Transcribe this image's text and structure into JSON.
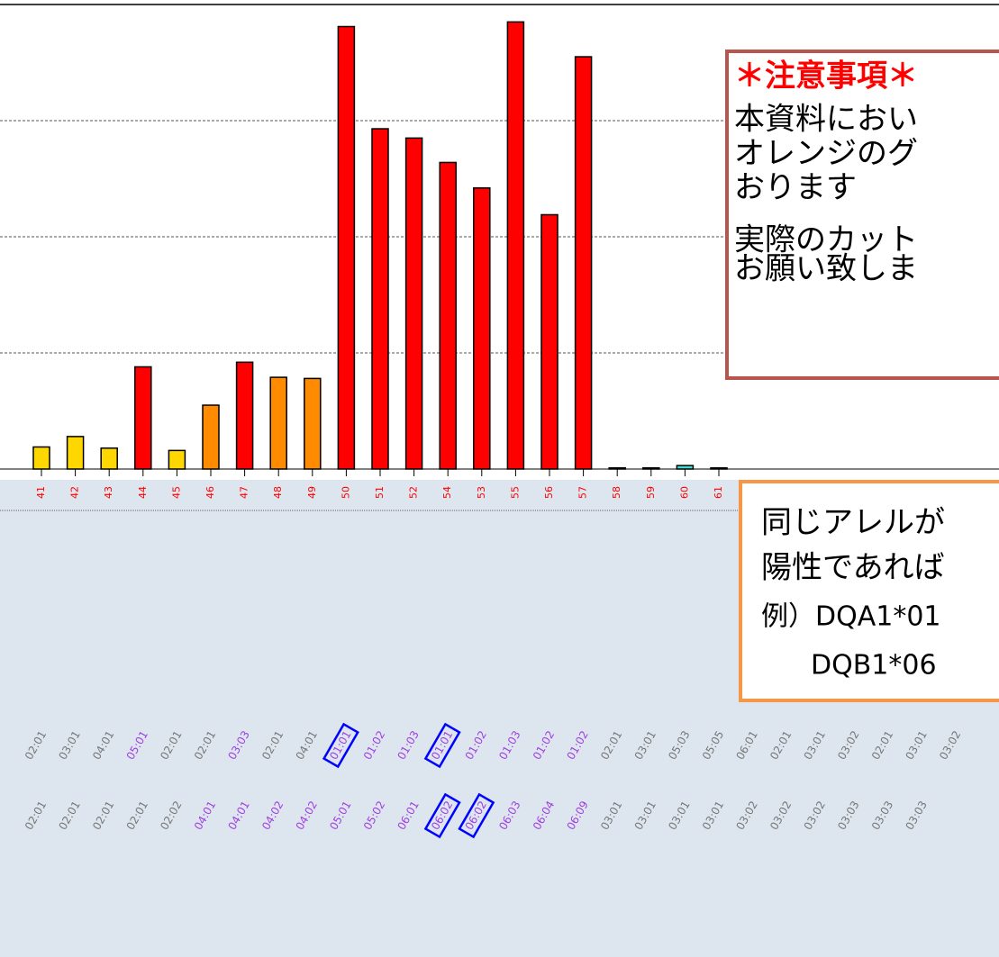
{
  "chart_data": {
    "type": "bar",
    "categories": [
      "41",
      "42",
      "43",
      "44",
      "45",
      "46",
      "47",
      "48",
      "49",
      "50",
      "51",
      "52",
      "54",
      "53",
      "55",
      "56",
      "57",
      "58",
      "59",
      "60",
      "61"
    ],
    "values": [
      0.19,
      0.28,
      0.18,
      0.88,
      0.16,
      0.55,
      0.92,
      0.79,
      0.78,
      3.81,
      2.93,
      2.85,
      2.64,
      2.42,
      3.85,
      2.19,
      3.55,
      0.01,
      0.01,
      0.03,
      0.01
    ],
    "colors": [
      "#ffd700",
      "#ffd700",
      "#ffd700",
      "#ff0000",
      "#ffd700",
      "#ff8c00",
      "#ff0000",
      "#ff8c00",
      "#ff8c00",
      "#ff0000",
      "#ff0000",
      "#ff0000",
      "#ff0000",
      "#ff0000",
      "#ff0000",
      "#ff0000",
      "#ff0000",
      "#40e0d0",
      "#40e0d0",
      "#40e0d0",
      "#40e0d0"
    ],
    "ylim": [
      0,
      4
    ],
    "yticks": [
      1,
      2,
      3
    ],
    "grid": true
  },
  "allele_rows": [
    {
      "labels": [
        "02:01",
        "03:01",
        "04:01",
        "05:01",
        "02:01",
        "02:01",
        "03:03",
        "02:01",
        "04:01",
        "01:01",
        "01:02",
        "01:03",
        "01:01",
        "01:02",
        "01:03",
        "01:02",
        "01:02",
        "02:01",
        "03:01",
        "05:03",
        "05:05",
        "06:01",
        "02:01",
        "03:01",
        "03:02",
        "02:01",
        "03:01",
        "03:02"
      ],
      "colors": [
        "#777",
        "#777",
        "#777",
        "#a040e0",
        "#777",
        "#777",
        "#a040e0",
        "#777",
        "#777",
        "#a040e0",
        "#a040e0",
        "#a040e0",
        "#a040e0",
        "#a040e0",
        "#a040e0",
        "#a040e0",
        "#a040e0",
        "#777",
        "#777",
        "#777",
        "#777",
        "#777",
        "#777",
        "#777",
        "#777",
        "#777",
        "#777",
        "#777"
      ],
      "boxed": [
        9,
        12
      ]
    },
    {
      "labels": [
        "02:01",
        "02:01",
        "02:01",
        "02:01",
        "02:02",
        "04:01",
        "04:01",
        "04:02",
        "04:02",
        "05:01",
        "05:02",
        "06:01",
        "06:02",
        "06:02",
        "06:03",
        "06:04",
        "06:09",
        "03:01",
        "03:01",
        "03:01",
        "03:01",
        "03:02",
        "03:02",
        "03:02",
        "03:03",
        "03:03",
        "03:03"
      ],
      "colors": [
        "#777",
        "#777",
        "#777",
        "#777",
        "#777",
        "#a040e0",
        "#a040e0",
        "#a040e0",
        "#a040e0",
        "#a040e0",
        "#a040e0",
        "#a040e0",
        "#a040e0",
        "#a040e0",
        "#a040e0",
        "#a040e0",
        "#a040e0",
        "#777",
        "#777",
        "#777",
        "#777",
        "#777",
        "#777",
        "#777",
        "#777",
        "#777",
        "#777"
      ],
      "boxed": [
        12,
        13
      ]
    }
  ],
  "notice": {
    "title": "＊注意事項＊",
    "lines": [
      "本資料におい",
      "オレンジのグ",
      "おります",
      "実際のカット",
      "お願い致しま"
    ]
  },
  "callout": {
    "lines": [
      "同じアレルが",
      "陽性であれば",
      "例）DQA1*01",
      "DQB1*06"
    ]
  }
}
